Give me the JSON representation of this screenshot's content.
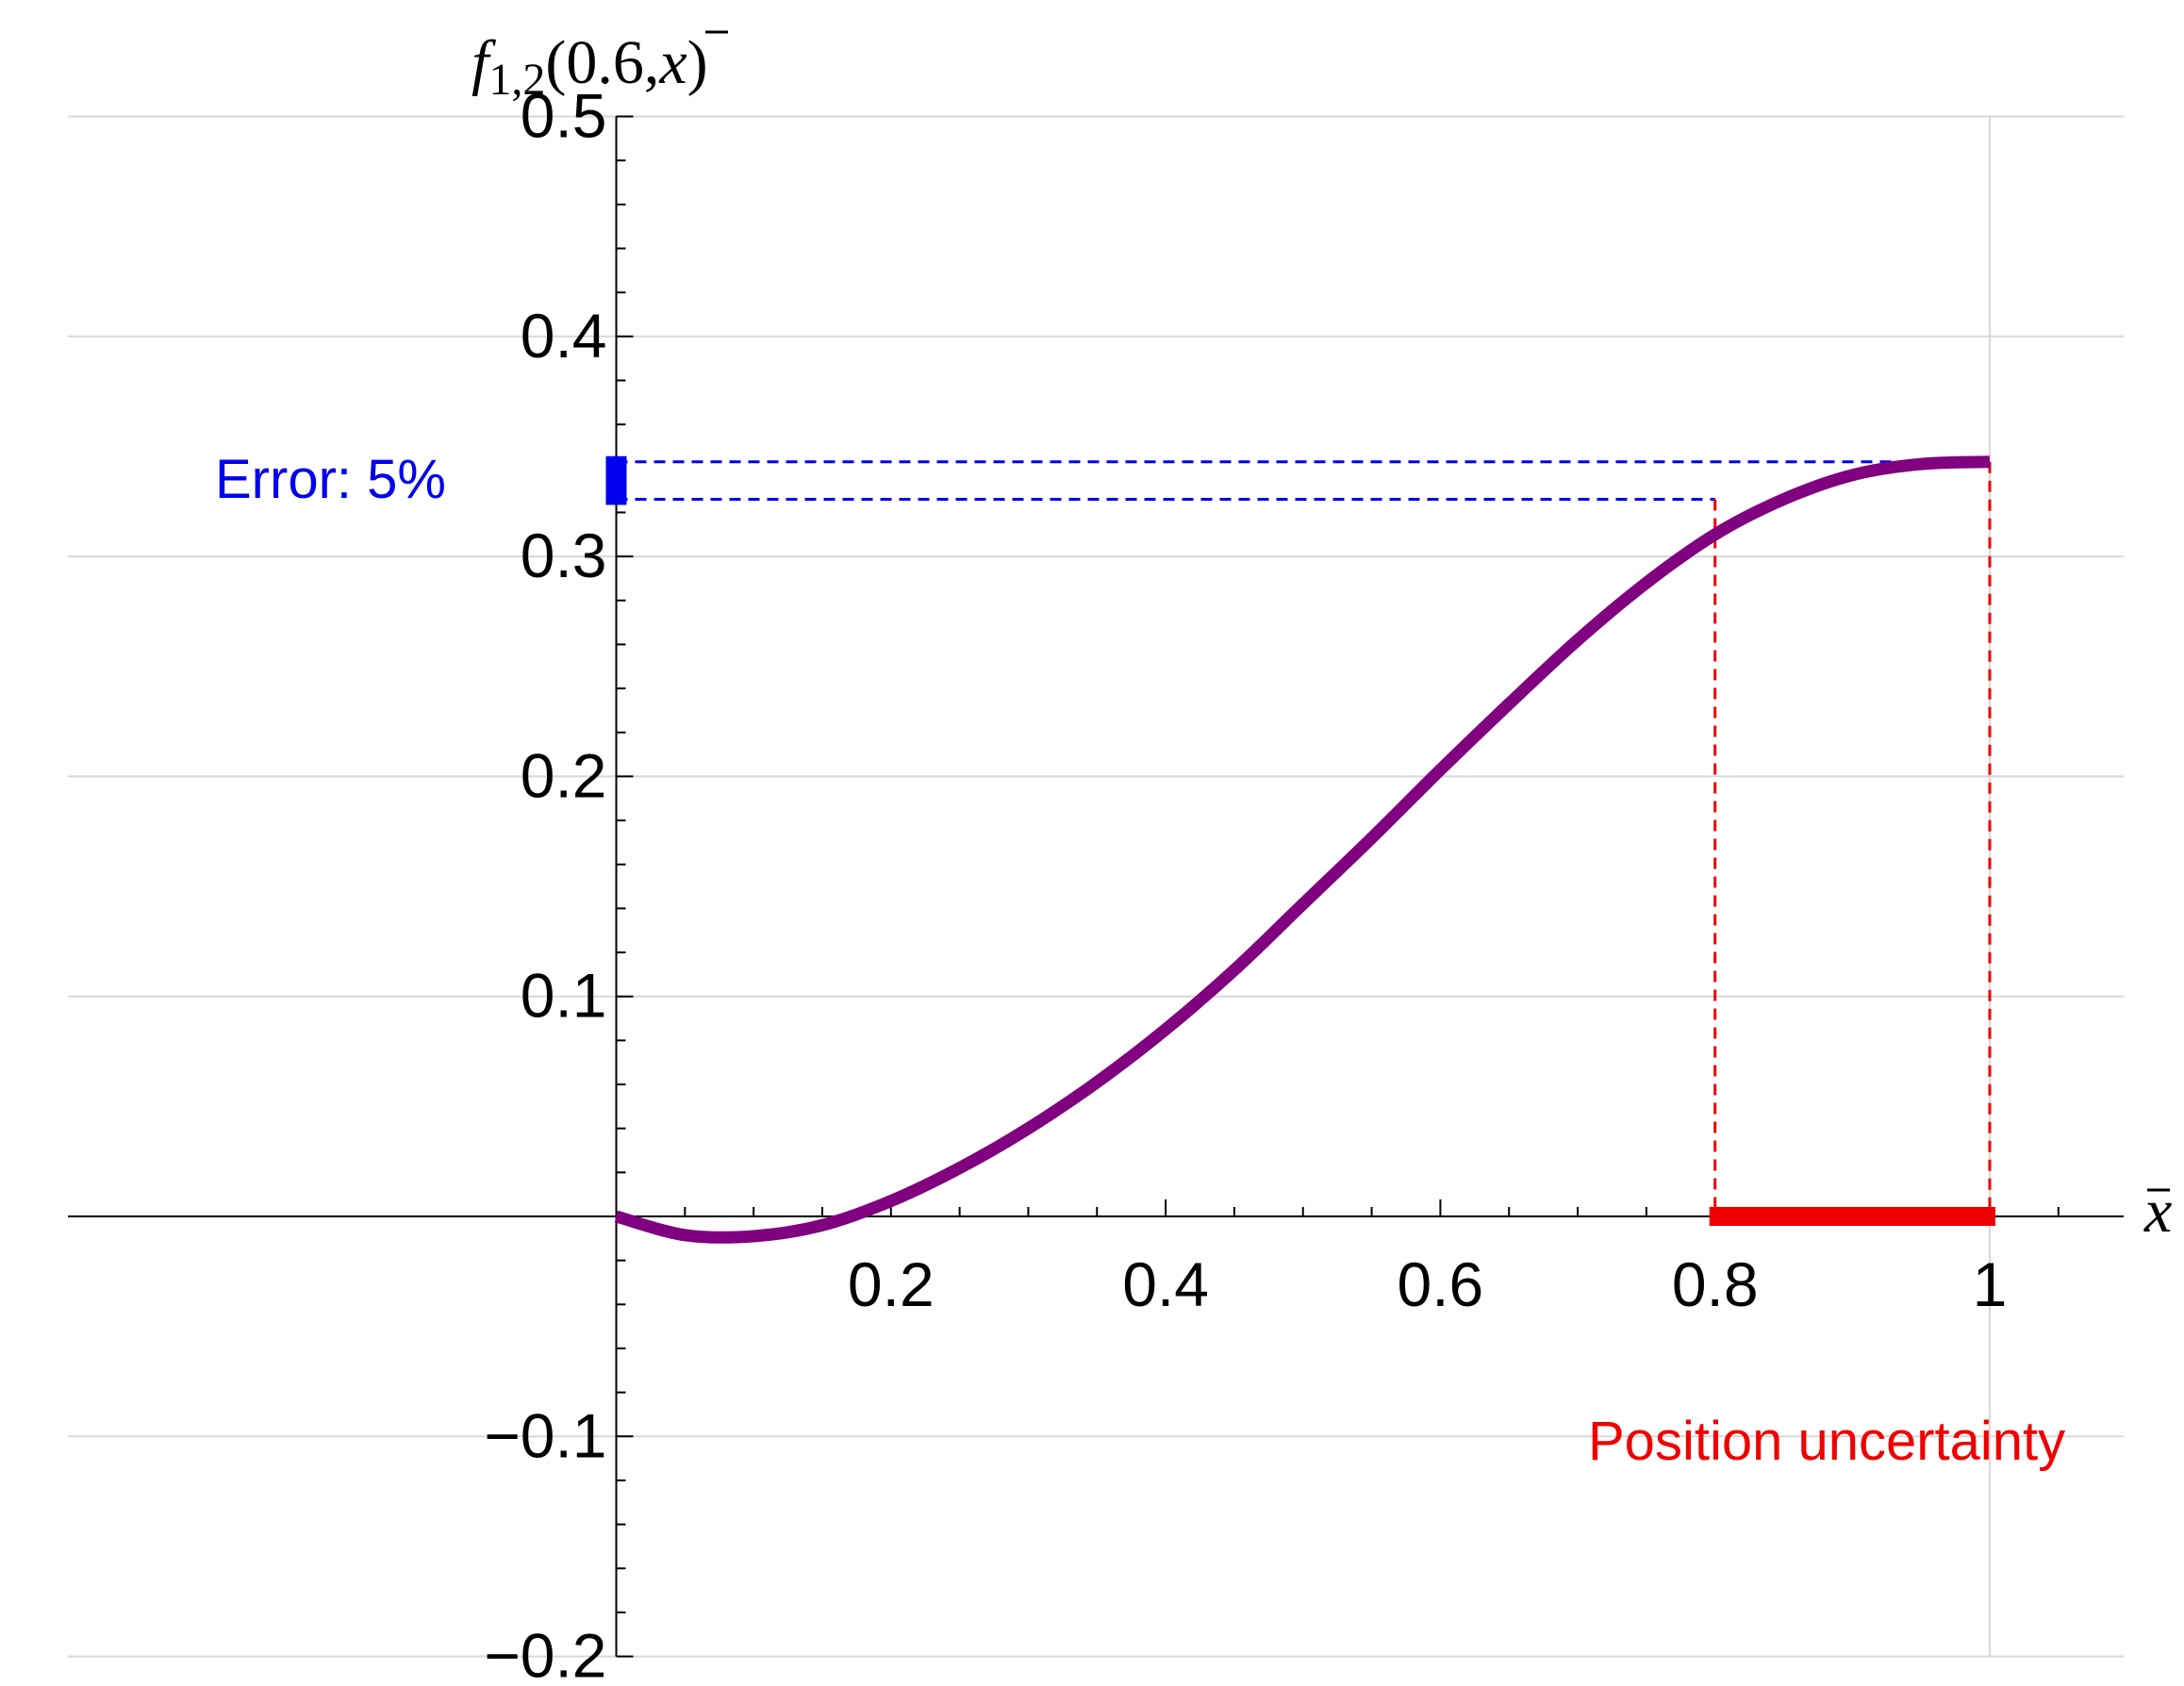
{
  "chart_data": {
    "type": "line",
    "ylabel": {
      "func": "f",
      "sub": "1,2",
      "args": "(0.6,",
      "var": "x",
      "close": ")"
    },
    "xlabel": "x",
    "xlim": [
      -0.4,
      1.1
    ],
    "ylim": [
      -0.2,
      0.5
    ],
    "xticks": [
      0.2,
      0.4,
      0.6,
      0.8,
      1.0
    ],
    "xtick_labels": [
      "0.2",
      "0.4",
      "0.6",
      "0.8",
      "1"
    ],
    "yticks": [
      -0.2,
      -0.1,
      0.1,
      0.2,
      0.3,
      0.4,
      0.5
    ],
    "ytick_labels": [
      "−0.2",
      "−0.1",
      "0.1",
      "0.2",
      "0.3",
      "0.4",
      "0.5"
    ],
    "grid": true,
    "series": [
      {
        "color": "#800080",
        "x": [
          0,
          0.05,
          0.1,
          0.15,
          0.2,
          0.25,
          0.3,
          0.35,
          0.4,
          0.45,
          0.5,
          0.55,
          0.6,
          0.65,
          0.7,
          0.75,
          0.8,
          0.85,
          0.9,
          0.95,
          1.0
        ],
        "y": [
          0.0,
          -0.0085,
          -0.009,
          -0.004,
          0.007,
          0.022,
          0.04,
          0.061,
          0.085,
          0.112,
          0.142,
          0.172,
          0.203,
          0.233,
          0.262,
          0.288,
          0.31,
          0.326,
          0.337,
          0.342,
          0.343
        ]
      }
    ],
    "annotations": {
      "error_text": "Error: 5%",
      "error_color": "#0000ee",
      "error_band": [
        0.326,
        0.343
      ],
      "position_text": "Position uncertainty",
      "position_color": "#ee0000",
      "position_band": [
        0.8,
        1.0
      ]
    }
  }
}
